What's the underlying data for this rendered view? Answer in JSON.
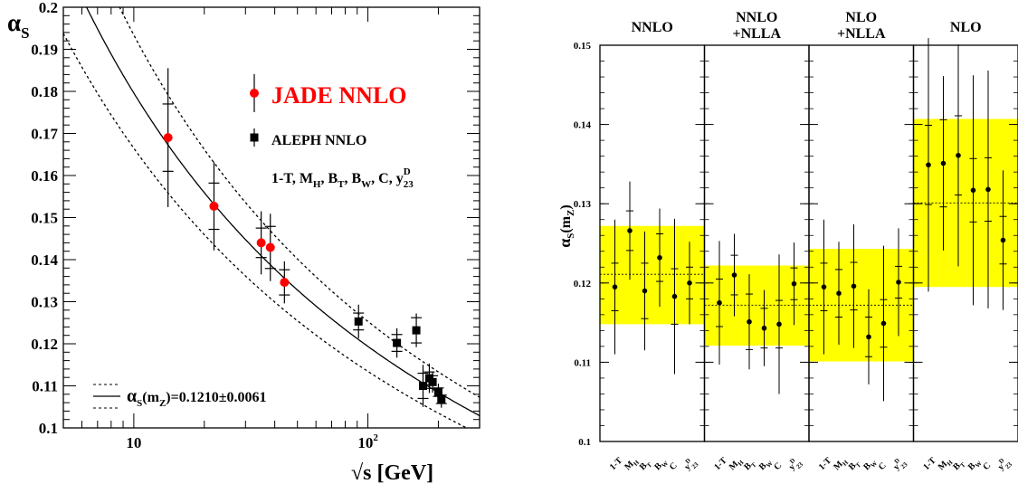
{
  "colors": {
    "jade": "#ff0000",
    "aleph": "#000000",
    "band": "#ffff00"
  },
  "chart_data": [
    {
      "type": "scatter",
      "xlabel": "√s [GeV]",
      "ylabel": "α",
      "ylabel_sub": "S",
      "x_scale": "log",
      "xlim": [
        5,
        300
      ],
      "ylim": [
        0.1,
        0.2
      ],
      "y_ticks": [
        "0.1",
        "0.11",
        "0.12",
        "0.13",
        "0.14",
        "0.15",
        "0.16",
        "0.17",
        "0.18",
        "0.19",
        "0.2"
      ],
      "x_tick_labels": [
        {
          "x": 10,
          "base": "10",
          "exp": ""
        },
        {
          "x": 100,
          "base": "10",
          "exp": "2"
        }
      ],
      "series": [
        {
          "name": "JADE NNLO",
          "marker": "circle",
          "points": [
            {
              "x": 14,
              "y": 0.169,
              "inner": 0.008,
              "outer": 0.0165
            },
            {
              "x": 22,
              "y": 0.1527,
              "inner": 0.0055,
              "outer": 0.0105
            },
            {
              "x": 35,
              "y": 0.144,
              "inner": 0.0035,
              "outer": 0.0075
            },
            {
              "x": 38.3,
              "y": 0.1429,
              "inner": 0.005,
              "outer": 0.008
            },
            {
              "x": 44,
              "y": 0.1346,
              "inner": 0.003,
              "outer": 0.005
            }
          ]
        },
        {
          "name": "ALEPH NNLO",
          "marker": "square",
          "points": [
            {
              "x": 91.2,
              "y": 0.1253,
              "inner": 0.002,
              "outer": 0.004
            },
            {
              "x": 133,
              "y": 0.1202,
              "inner": 0.002,
              "outer": 0.0035
            },
            {
              "x": 161,
              "y": 0.1232,
              "inner": 0.003,
              "outer": 0.004
            },
            {
              "x": 172,
              "y": 0.11,
              "inner": 0.003,
              "outer": 0.005
            },
            {
              "x": 183,
              "y": 0.1118,
              "inner": 0.0015,
              "outer": 0.0035
            },
            {
              "x": 189,
              "y": 0.1109,
              "inner": 0.0015,
              "outer": 0.0025
            },
            {
              "x": 200,
              "y": 0.1085,
              "inner": 0.001,
              "outer": 0.002
            },
            {
              "x": 206,
              "y": 0.1068,
              "inner": 0.001,
              "outer": 0.002
            }
          ]
        }
      ],
      "fit": {
        "central": 0.121,
        "error": 0.0061,
        "mz": 91.1876
      },
      "legend": {
        "jade": "JADE NNLO",
        "aleph": "ALEPH NNLO",
        "variables": [
          "1-T",
          ", M",
          "H",
          ", B",
          "T",
          ", B",
          "W",
          ", C, y",
          "D",
          "23"
        ],
        "fit_label": "(m",
        "fit_label_sub": "Z",
        "fit_value": ")=0.1210±0.0061",
        "fit_alpha": "α",
        "fit_alpha_sub": "S"
      }
    },
    {
      "type": "scatter",
      "ylabel": "α",
      "ylabel_sub": "S",
      "ylabel_rest": "(m",
      "ylabel_sub2": "Z",
      "ylabel_end": ")",
      "ylim": [
        0.1,
        0.15
      ],
      "y_ticks": [
        "0.1",
        "0.11",
        "0.12",
        "0.13",
        "0.14",
        "0.15"
      ],
      "variables": [
        {
          "base": "1-T",
          "sub": "",
          "sup": ""
        },
        {
          "base": "M",
          "sub": "H",
          "sup": ""
        },
        {
          "base": "B",
          "sub": "T",
          "sup": ""
        },
        {
          "base": "B",
          "sub": "W",
          "sup": ""
        },
        {
          "base": "C",
          "sub": "",
          "sup": ""
        },
        {
          "base": "y",
          "sub": "23",
          "sup": "D"
        }
      ],
      "panels": [
        {
          "title": [
            "NNLO"
          ],
          "mean": 0.1211,
          "band": [
            0.1148,
            0.1272
          ],
          "values": [
            {
              "y": 0.1195,
              "inner": 0.003,
              "outer": 0.0085
            },
            {
              "y": 0.1266,
              "inner": 0.0025,
              "outer": 0.0062
            },
            {
              "y": 0.119,
              "inner": 0.0035,
              "outer": 0.0075
            },
            {
              "y": 0.1232,
              "inner": 0.003,
              "outer": 0.0062
            },
            {
              "y": 0.1183,
              "inner": 0.0035,
              "outer": 0.0098
            },
            {
              "y": 0.12,
              "inner": 0.002,
              "outer": 0.0052
            }
          ]
        },
        {
          "title": [
            "NNLO",
            "+NLLA"
          ],
          "mean": 0.1172,
          "band": [
            0.1121,
            0.1222
          ],
          "values": [
            {
              "y": 0.1175,
              "inner": 0.003,
              "outer": 0.0078
            },
            {
              "y": 0.121,
              "inner": 0.0025,
              "outer": 0.0052
            },
            {
              "y": 0.1151,
              "inner": 0.0035,
              "outer": 0.006
            },
            {
              "y": 0.1143,
              "inner": 0.0025,
              "outer": 0.0048
            },
            {
              "y": 0.1148,
              "inner": 0.003,
              "outer": 0.0088
            },
            {
              "y": 0.1199,
              "inner": 0.002,
              "outer": 0.0052
            }
          ]
        },
        {
          "title": [
            "NLO",
            "+NLLA"
          ],
          "mean": 0.1172,
          "band": [
            0.1101,
            0.1243
          ],
          "values": [
            {
              "y": 0.1195,
              "inner": 0.003,
              "outer": 0.0085
            },
            {
              "y": 0.1187,
              "inner": 0.003,
              "outer": 0.0065
            },
            {
              "y": 0.1196,
              "inner": 0.003,
              "outer": 0.0078
            },
            {
              "y": 0.1132,
              "inner": 0.0025,
              "outer": 0.006
            },
            {
              "y": 0.1149,
              "inner": 0.003,
              "outer": 0.0098
            },
            {
              "y": 0.1201,
              "inner": 0.002,
              "outer": 0.0068
            }
          ]
        },
        {
          "title": [
            "NLO"
          ],
          "mean": 0.1301,
          "band": [
            0.1195,
            0.1407
          ],
          "values": [
            {
              "y": 0.1349,
              "inner": 0.005,
              "outer": 0.016
            },
            {
              "y": 0.1351,
              "inner": 0.0055,
              "outer": 0.011
            },
            {
              "y": 0.1361,
              "inner": 0.005,
              "outer": 0.014
            },
            {
              "y": 0.1317,
              "inner": 0.004,
              "outer": 0.0145
            },
            {
              "y": 0.1318,
              "inner": 0.004,
              "outer": 0.015
            },
            {
              "y": 0.1254,
              "inner": 0.003,
              "outer": 0.0088
            }
          ]
        }
      ]
    }
  ]
}
